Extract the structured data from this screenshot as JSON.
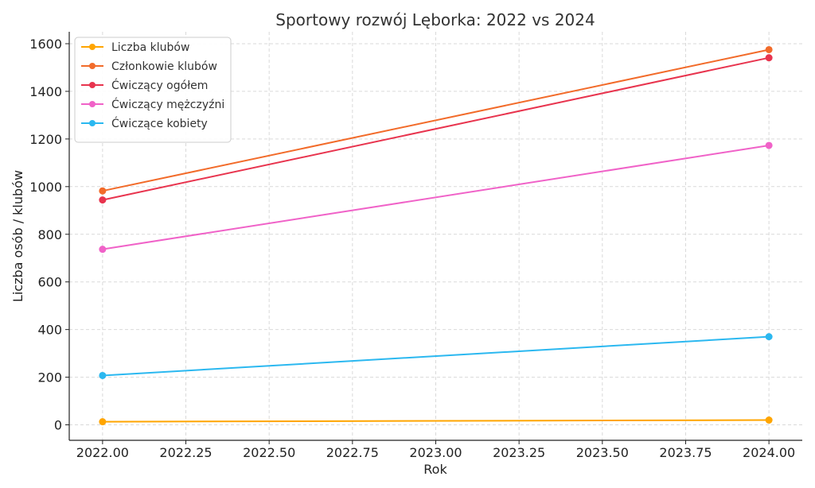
{
  "chart_data": {
    "type": "line",
    "title": "Sportowy rozwój Lęborka: 2022 vs 2024",
    "xlabel": "Rok",
    "ylabel": "Liczba osób / klubów",
    "xlim": [
      2021.9,
      2024.1
    ],
    "ylim": [
      -65,
      1650
    ],
    "xticks": [
      2022.0,
      2022.25,
      2022.5,
      2022.75,
      2023.0,
      2023.25,
      2023.5,
      2023.75,
      2024.0
    ],
    "xtick_labels": [
      "2022.00",
      "2022.25",
      "2022.50",
      "2022.75",
      "2023.00",
      "2023.25",
      "2023.50",
      "2023.75",
      "2024.00"
    ],
    "yticks": [
      0,
      200,
      400,
      600,
      800,
      1000,
      1200,
      1400,
      1600
    ],
    "ytick_labels": [
      "0",
      "200",
      "400",
      "600",
      "800",
      "1000",
      "1200",
      "1400",
      "1600"
    ],
    "grid": true,
    "legend_position": "top-left",
    "x": [
      2022,
      2024
    ],
    "series": [
      {
        "name": "Liczba klubów",
        "color": "#FFA500",
        "values": [
          13,
          20
        ]
      },
      {
        "name": "Członkowie klubów",
        "color": "#F26B2A",
        "values": [
          982,
          1575
        ]
      },
      {
        "name": "Ćwiczący ogółem",
        "color": "#E8344E",
        "values": [
          944,
          1541
        ]
      },
      {
        "name": "Ćwiczący mężczyźni",
        "color": "#F062C8",
        "values": [
          737,
          1173
        ]
      },
      {
        "name": "Ćwiczące kobiety",
        "color": "#2BB8F0",
        "values": [
          207,
          370
        ]
      }
    ]
  }
}
